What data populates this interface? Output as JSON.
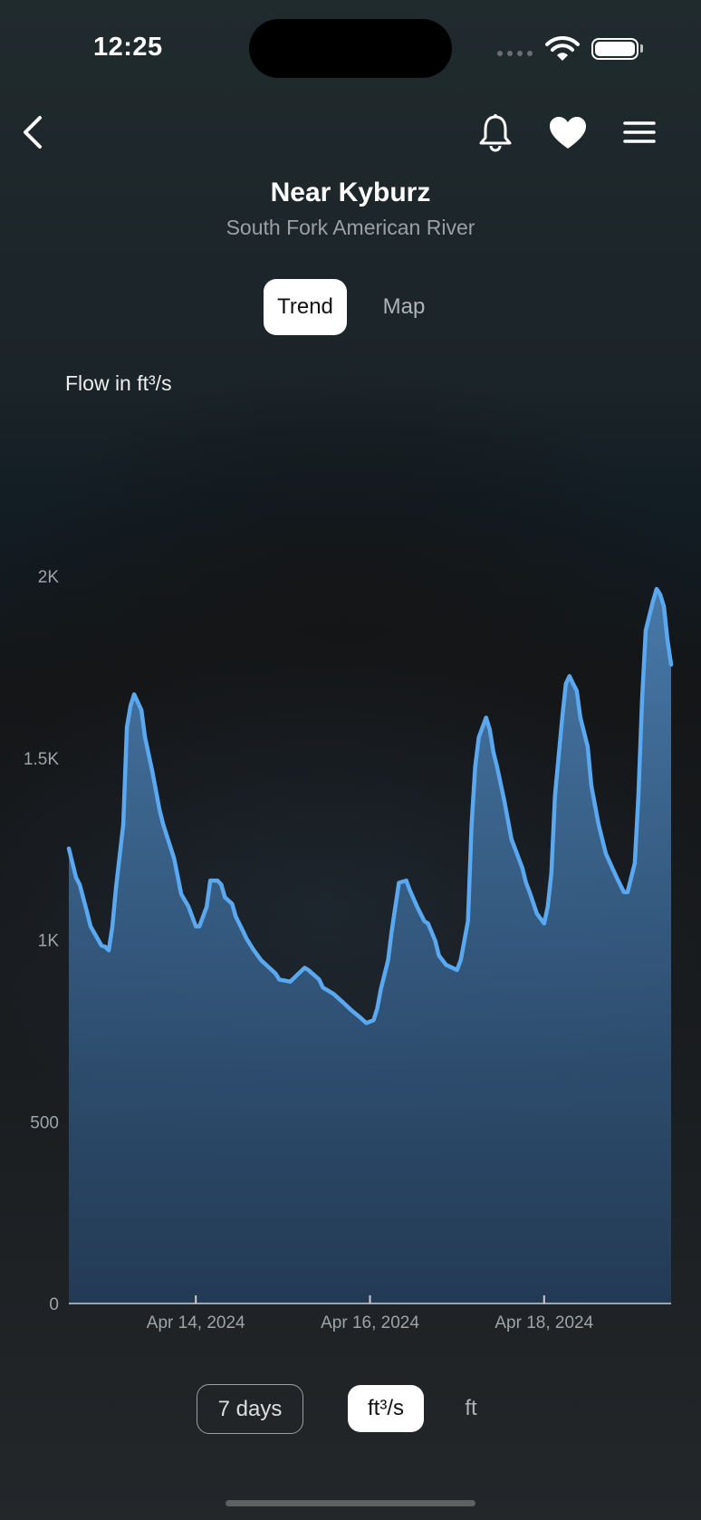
{
  "status_bar": {
    "time": "12:25"
  },
  "nav": {
    "back_icon": "chevron-left-icon",
    "bell_icon": "bell-icon",
    "favorite_icon": "heart-icon",
    "menu_icon": "hamburger-menu-icon"
  },
  "header": {
    "title": "Near Kyburz",
    "subtitle": "South Fork American River"
  },
  "tabs": [
    {
      "label": "Trend",
      "selected": true
    },
    {
      "label": "Map",
      "selected": false
    }
  ],
  "controls": {
    "range": "7 days",
    "units": [
      {
        "label": "ft³/s",
        "selected": true
      },
      {
        "label": "ft",
        "selected": false
      }
    ]
  },
  "colors": {
    "line": "#5aa9f0",
    "fill": "#3d6a98",
    "accent": "#ffffff"
  },
  "chart_data": {
    "type": "area",
    "title": "",
    "ylabel": "Flow in ft³/s",
    "xlabel": "",
    "ylim": [
      0,
      2000
    ],
    "yticks": [
      {
        "v": 0,
        "label": "0"
      },
      {
        "v": 500,
        "label": "500"
      },
      {
        "v": 1000,
        "label": "1K"
      },
      {
        "v": 1500,
        "label": "1.5K"
      },
      {
        "v": 2000,
        "label": "2K"
      }
    ],
    "xlim": [
      "2024-04-12T13:00",
      "2024-04-19T11:00"
    ],
    "xticks": [
      {
        "v": "2024-04-14T00:00",
        "label": "Apr 14, 2024"
      },
      {
        "v": "2024-04-16T00:00",
        "label": "Apr 16, 2024"
      },
      {
        "v": "2024-04-18T00:00",
        "label": "Apr 18, 2024"
      }
    ],
    "grid": false,
    "points": [
      [
        "2024-04-12T13:00",
        1251
      ],
      [
        "2024-04-12T15:00",
        1171
      ],
      [
        "2024-04-12T16:00",
        1152
      ],
      [
        "2024-04-12T18:00",
        1077
      ],
      [
        "2024-04-12T19:00",
        1037
      ],
      [
        "2024-04-12T22:00",
        984
      ],
      [
        "2024-04-12T23:00",
        981
      ],
      [
        "2024-04-13T00:00",
        971
      ],
      [
        "2024-04-13T01:00",
        1037
      ],
      [
        "2024-04-13T02:00",
        1144
      ],
      [
        "2024-04-13T04:00",
        1317
      ],
      [
        "2024-04-13T05:00",
        1584
      ],
      [
        "2024-04-13T06:00",
        1643
      ],
      [
        "2024-04-13T07:00",
        1675
      ],
      [
        "2024-04-13T09:00",
        1632
      ],
      [
        "2024-04-13T10:00",
        1557
      ],
      [
        "2024-04-13T12:00",
        1464
      ],
      [
        "2024-04-13T14:00",
        1357
      ],
      [
        "2024-04-13T15:00",
        1317
      ],
      [
        "2024-04-13T18:00",
        1224
      ],
      [
        "2024-04-13T20:00",
        1125
      ],
      [
        "2024-04-13T22:00",
        1091
      ],
      [
        "2024-04-14T00:00",
        1037
      ],
      [
        "2024-04-14T01:00",
        1037
      ],
      [
        "2024-04-14T03:00",
        1091
      ],
      [
        "2024-04-14T04:00",
        1163
      ],
      [
        "2024-04-14T06:00",
        1163
      ],
      [
        "2024-04-14T07:00",
        1152
      ],
      [
        "2024-04-14T08:00",
        1117
      ],
      [
        "2024-04-14T10:00",
        1099
      ],
      [
        "2024-04-14T11:00",
        1064
      ],
      [
        "2024-04-14T13:00",
        1024
      ],
      [
        "2024-04-14T14:00",
        1003
      ],
      [
        "2024-04-14T16:00",
        971
      ],
      [
        "2024-04-14T18:00",
        944
      ],
      [
        "2024-04-14T22:00",
        907
      ],
      [
        "2024-04-14T23:00",
        891
      ],
      [
        "2024-04-15T02:00",
        885
      ],
      [
        "2024-04-15T04:00",
        904
      ],
      [
        "2024-04-15T06:00",
        923
      ],
      [
        "2024-04-15T07:00",
        917
      ],
      [
        "2024-04-15T10:00",
        891
      ],
      [
        "2024-04-15T11:00",
        869
      ],
      [
        "2024-04-15T14:00",
        851
      ],
      [
        "2024-04-15T17:00",
        824
      ],
      [
        "2024-04-15T19:00",
        805
      ],
      [
        "2024-04-15T21:00",
        789
      ],
      [
        "2024-04-15T23:00",
        771
      ],
      [
        "2024-04-16T01:00",
        779
      ],
      [
        "2024-04-16T02:00",
        811
      ],
      [
        "2024-04-16T03:00",
        864
      ],
      [
        "2024-04-16T05:00",
        944
      ],
      [
        "2024-04-16T06:00",
        1024
      ],
      [
        "2024-04-16T08:00",
        1157
      ],
      [
        "2024-04-16T10:00",
        1163
      ],
      [
        "2024-04-16T11:00",
        1136
      ],
      [
        "2024-04-16T13:00",
        1091
      ],
      [
        "2024-04-16T15:00",
        1051
      ],
      [
        "2024-04-16T16:00",
        1045
      ],
      [
        "2024-04-16T18:00",
        997
      ],
      [
        "2024-04-16T19:00",
        957
      ],
      [
        "2024-04-16T21:00",
        931
      ],
      [
        "2024-04-17T00:00",
        917
      ],
      [
        "2024-04-17T01:00",
        944
      ],
      [
        "2024-04-17T03:00",
        1051
      ],
      [
        "2024-04-17T04:00",
        1317
      ],
      [
        "2024-04-17T05:00",
        1477
      ],
      [
        "2024-04-17T06:00",
        1557
      ],
      [
        "2024-04-17T08:00",
        1611
      ],
      [
        "2024-04-17T09:00",
        1579
      ],
      [
        "2024-04-17T10:00",
        1517
      ],
      [
        "2024-04-17T11:00",
        1477
      ],
      [
        "2024-04-17T13:00",
        1384
      ],
      [
        "2024-04-17T15:00",
        1277
      ],
      [
        "2024-04-17T18:00",
        1197
      ],
      [
        "2024-04-17T19:00",
        1157
      ],
      [
        "2024-04-17T20:00",
        1131
      ],
      [
        "2024-04-17T22:00",
        1072
      ],
      [
        "2024-04-18T00:00",
        1045
      ],
      [
        "2024-04-18T01:00",
        1091
      ],
      [
        "2024-04-18T02:00",
        1184
      ],
      [
        "2024-04-18T03:00",
        1397
      ],
      [
        "2024-04-18T05:00",
        1611
      ],
      [
        "2024-04-18T06:00",
        1704
      ],
      [
        "2024-04-18T07:00",
        1725
      ],
      [
        "2024-04-18T08:00",
        1704
      ],
      [
        "2024-04-18T09:00",
        1685
      ],
      [
        "2024-04-18T10:00",
        1611
      ],
      [
        "2024-04-18T12:00",
        1531
      ],
      [
        "2024-04-18T13:00",
        1424
      ],
      [
        "2024-04-18T15:00",
        1317
      ],
      [
        "2024-04-18T17:00",
        1237
      ],
      [
        "2024-04-18T20:00",
        1171
      ],
      [
        "2024-04-18T22:00",
        1131
      ],
      [
        "2024-04-18T23:00",
        1131
      ],
      [
        "2024-04-19T01:00",
        1211
      ],
      [
        "2024-04-19T02:00",
        1397
      ],
      [
        "2024-04-19T03:00",
        1664
      ],
      [
        "2024-04-19T04:00",
        1851
      ],
      [
        "2024-04-19T06:00",
        1931
      ],
      [
        "2024-04-19T07:00",
        1965
      ],
      [
        "2024-04-19T08:00",
        1949
      ],
      [
        "2024-04-19T09:00",
        1917
      ],
      [
        "2024-04-19T10:00",
        1824
      ],
      [
        "2024-04-19T11:00",
        1757
      ]
    ]
  }
}
